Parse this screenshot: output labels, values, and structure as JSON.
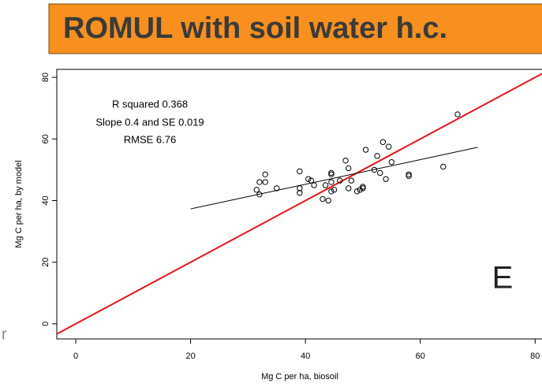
{
  "chart_data": {
    "type": "scatter",
    "title": "ROMUL with soil water h.c.",
    "x_label": "Mg C per ha, biosoil",
    "y_label": "Mg C per ha, by model",
    "annotations": [
      "R squared  0.368",
      "Slope  0.4  and SE  0.019",
      "RMSE 6.76"
    ],
    "panel_letter": "E",
    "edge_fragment": "r",
    "xlim": [
      -3.3,
      81.2
    ],
    "ylim": [
      -4.9,
      82.6
    ],
    "xticks": [
      0,
      20,
      40,
      60,
      80
    ],
    "yticks": [
      0,
      20,
      40,
      60,
      80
    ],
    "series": [
      {
        "color": "#000000",
        "x": [
          31.5,
          32,
          32,
          33,
          33,
          35,
          39,
          39,
          39,
          40.5,
          41,
          41.5,
          43,
          43.5,
          44,
          44.5,
          44.5,
          44.5,
          45,
          44.5,
          46,
          47,
          47.5,
          47.5,
          48,
          49,
          49.5,
          50,
          50,
          50.5,
          52,
          52.5,
          53,
          53.5,
          54,
          54.5,
          55,
          58,
          58,
          64,
          66.5
        ],
        "values": [
          43.5,
          42,
          46,
          48.5,
          46,
          44,
          49.5,
          44,
          42.5,
          47,
          46.5,
          45,
          40.5,
          45,
          40,
          49,
          48.5,
          46,
          43.5,
          43,
          46.5,
          53,
          50.5,
          44,
          46.5,
          43,
          43.5,
          44,
          44.5,
          56.5,
          50,
          54.5,
          49,
          59,
          47,
          57.5,
          52.5,
          48.5,
          48,
          51,
          68
        ]
      }
    ],
    "lines": [
      {
        "color": "#e8141c",
        "x": [
          -3.3,
          81.2
        ],
        "values": [
          -3.3,
          81.2
        ]
      },
      {
        "color": "#000000",
        "x": [
          20,
          70
        ],
        "values": [
          37.3,
          57.3
        ]
      }
    ]
  }
}
